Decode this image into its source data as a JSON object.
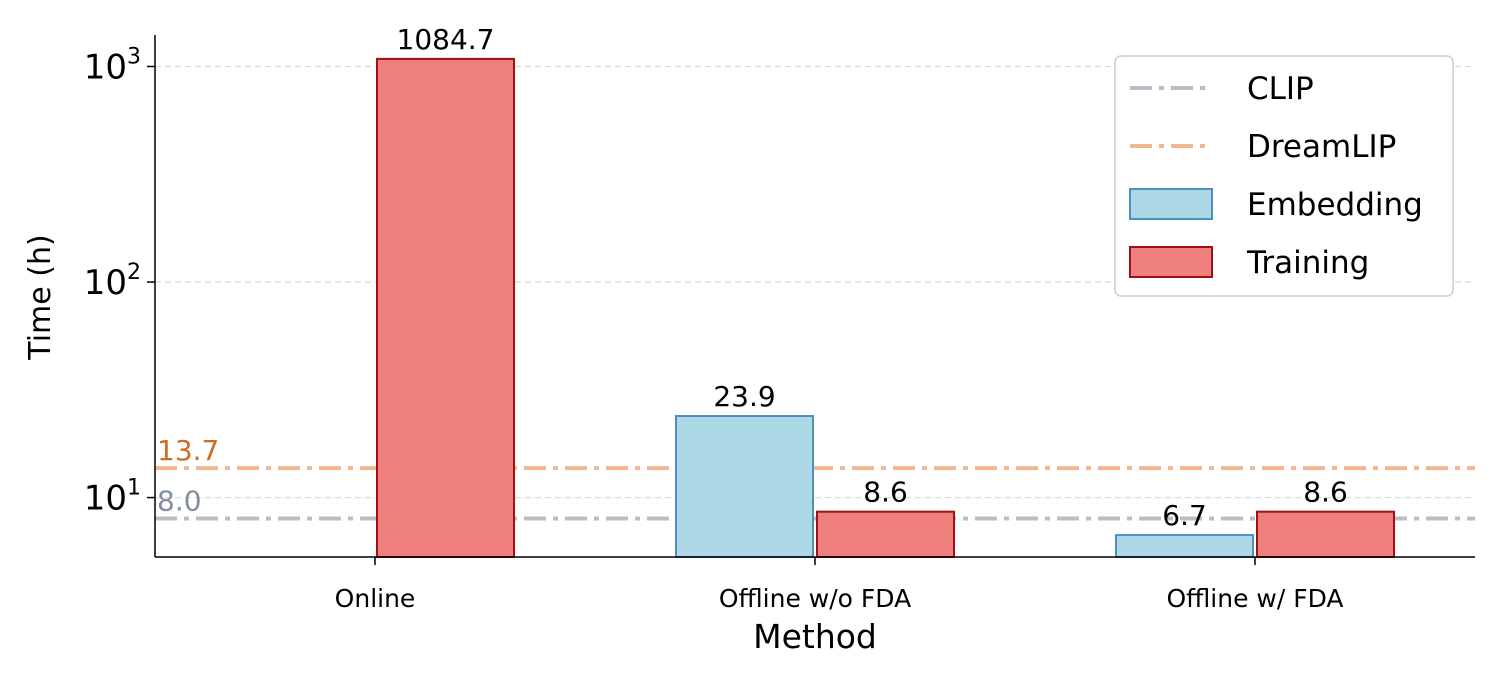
{
  "chart_data": {
    "type": "bar",
    "xlabel": "Method",
    "ylabel": "Time (h)",
    "yscale": "log",
    "ylim": [
      5.3,
      1400
    ],
    "yticks": [
      {
        "value": 10,
        "base": "10",
        "exp": "1"
      },
      {
        "value": 100,
        "base": "10",
        "exp": "2"
      },
      {
        "value": 1000,
        "base": "10",
        "exp": "3"
      }
    ],
    "grid": "horizontal dashed",
    "categories": [
      "Online",
      "Offline w/o FDA",
      "Offline w/ FDA"
    ],
    "series": [
      {
        "name": "Embedding",
        "values": [
          null,
          23.9,
          6.7
        ],
        "labels": [
          "",
          "23.9",
          "6.7"
        ],
        "fill": "#add8e6",
        "stroke": "#4f8fbf"
      },
      {
        "name": "Training",
        "values": [
          1084.7,
          8.6,
          8.6
        ],
        "labels": [
          "1084.7",
          "8.6",
          "8.6"
        ],
        "fill": "#f08080",
        "stroke": "#a01010"
      }
    ],
    "reference_lines": [
      {
        "name": "CLIP",
        "value": 8.0,
        "label": "8.0",
        "color": "#b8bec6",
        "label_color": "#8090a0"
      },
      {
        "name": "DreamLIP",
        "value": 13.7,
        "label": "13.7",
        "color": "#f0b890",
        "label_color": "#d06a20"
      }
    ],
    "legend": {
      "position": "top-right",
      "entries": [
        {
          "label": "CLIP",
          "kind": "line",
          "color": "#b8bec6"
        },
        {
          "label": "DreamLIP",
          "kind": "line",
          "color": "#f0b890"
        },
        {
          "label": "Embedding",
          "kind": "patch",
          "fill": "#add8e6",
          "stroke": "#4f8fbf"
        },
        {
          "label": "Training",
          "kind": "patch",
          "fill": "#f08080",
          "stroke": "#a01010"
        }
      ]
    }
  }
}
